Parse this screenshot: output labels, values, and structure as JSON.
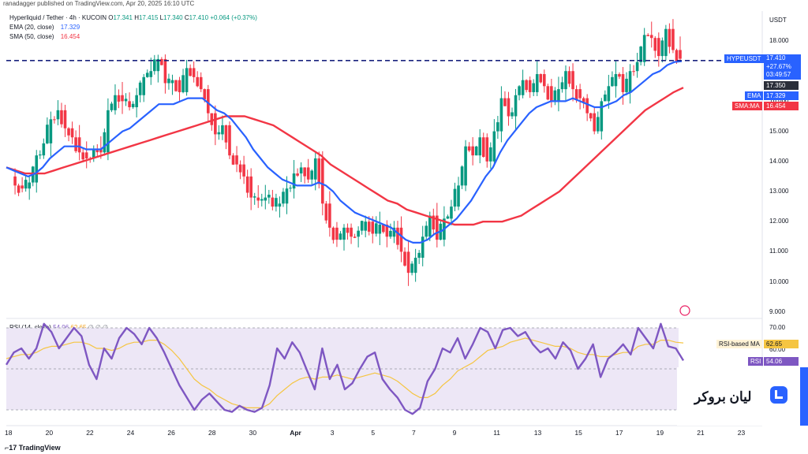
{
  "header": {
    "publish_line": "ranadagger published on TradingView.com, Apr 20, 2025 16:10 UTC"
  },
  "legend": {
    "symbol_line": "Hyperliquid / Tether · 4h · KUCOIN",
    "o_label": "O",
    "o_value": "17.341",
    "h_label": "H",
    "h_value": "17.415",
    "l_label": "L",
    "l_value": "17.340",
    "c_label": "C",
    "c_value": "17.410",
    "change": "+0.064 (+0.37%)",
    "ema_label": "EMA (20, close)",
    "ema_value": "17.329",
    "sma_label": "SMA (50, close)",
    "sma_value": "16.454"
  },
  "rsi_legend": {
    "label": "RSI (14, close)",
    "rsi_value": "54.06",
    "ma_value": "62.65",
    "extra": "∅ ∅ ∅"
  },
  "price_axis": {
    "currency": "USDT",
    "ticks": [
      "18.000",
      "17.000",
      "16.000",
      "15.000",
      "14.000",
      "13.000",
      "12.000",
      "11.000",
      "10.000",
      "9.000"
    ],
    "price_tag": {
      "symbol": "HYPEUSDT",
      "price": "17.410",
      "change": "+27.67%",
      "countdown": "03:49:57"
    },
    "line_tag": "17.350",
    "ema_tag": {
      "label": "EMA",
      "value": "17.329"
    },
    "sma_tag": {
      "label": "SMA:MA",
      "value": "16.454"
    }
  },
  "rsi_axis": {
    "ticks": [
      "70.00",
      "60.00"
    ],
    "rsi_ma_tag": {
      "label": "RSI-based MA",
      "value": "62.65"
    },
    "rsi_tag": {
      "label": "RSI",
      "value": "54.06"
    }
  },
  "time_axis": {
    "ticks": [
      "18",
      "20",
      "22",
      "24",
      "26",
      "28",
      "30",
      "Apr",
      "3",
      "5",
      "7",
      "9",
      "11",
      "13",
      "15",
      "17",
      "19",
      "21",
      "23"
    ]
  },
  "watermark": {
    "text": "لیان بروکر"
  },
  "footer": {
    "brand": "TradingView"
  },
  "colors": {
    "up": "#089981",
    "down": "#f23645",
    "ema": "#2962ff",
    "sma": "#f23645",
    "rsi": "#7e57c2",
    "rsi_ma": "#f5c542",
    "rsi_band": "#ede7f6"
  },
  "chart_data": [
    {
      "type": "candlestick",
      "title": "Hyperliquid / Tether · 4h · KUCOIN",
      "x_ticks": [
        "18",
        "20",
        "22",
        "24",
        "26",
        "28",
        "30",
        "Apr",
        "3",
        "5",
        "7",
        "9",
        "11",
        "13",
        "15",
        "17",
        "19",
        "21",
        "23"
      ],
      "ylim": [
        9.0,
        18.5
      ],
      "current_price": 17.41,
      "horizontal_line": 17.35,
      "close_path": [
        13.5,
        13.2,
        13.1,
        13.3,
        14.2,
        14.6,
        15.4,
        15.7,
        15.1,
        14.8,
        14.3,
        14.1,
        14.4,
        14.3,
        15.7,
        16.2,
        16.0,
        15.8,
        16.2,
        16.8,
        17.0,
        17.4,
        16.6,
        16.7,
        16.3,
        17.1,
        16.8,
        16.4,
        15.6,
        14.9,
        15.2,
        14.2,
        13.9,
        13.5,
        12.8,
        12.7,
        12.8,
        12.5,
        12.6,
        13.1,
        13.6,
        13.8,
        13.4,
        14.1,
        12.6,
        11.8,
        11.4,
        11.8,
        11.5,
        11.7,
        12.0,
        11.6,
        11.9,
        11.5,
        11.8,
        11.0,
        10.3,
        10.8,
        11.5,
        12.2,
        11.4,
        12.1,
        12.5,
        13.2,
        14.5,
        14.2,
        14.8,
        14.0,
        15.0,
        16.1,
        15.5,
        16.2,
        16.7,
        16.3,
        16.9,
        16.5,
        16.0,
        16.4,
        17.0,
        16.4,
        16.1,
        15.6,
        15.0,
        16.0,
        16.5,
        16.9,
        16.3,
        17.0,
        17.3,
        18.2,
        18.1,
        17.5,
        18.4,
        17.7,
        17.41
      ],
      "ema_20": [
        13.8,
        13.7,
        13.6,
        13.5,
        13.6,
        13.8,
        14.1,
        14.3,
        14.5,
        14.5,
        14.5,
        14.4,
        14.4,
        14.4,
        14.6,
        14.8,
        15.0,
        15.1,
        15.3,
        15.5,
        15.7,
        15.9,
        15.9,
        15.9,
        16.0,
        16.1,
        16.1,
        16.1,
        15.9,
        15.7,
        15.6,
        15.4,
        15.1,
        14.8,
        14.4,
        14.1,
        13.8,
        13.6,
        13.4,
        13.3,
        13.2,
        13.2,
        13.2,
        13.3,
        13.2,
        13.0,
        12.7,
        12.5,
        12.3,
        12.2,
        12.1,
        12.0,
        11.9,
        11.8,
        11.6,
        11.4,
        11.3,
        11.3,
        11.4,
        11.6,
        11.7,
        11.9,
        12.1,
        12.4,
        12.7,
        13.1,
        13.5,
        13.8,
        14.3,
        14.7,
        15.0,
        15.3,
        15.6,
        15.8,
        15.9,
        16.0,
        16.0,
        16.0,
        16.1,
        16.0,
        15.9,
        15.8,
        15.8,
        15.9,
        16.0,
        16.2,
        16.3,
        16.5,
        16.7,
        16.9,
        17.0,
        17.2,
        17.3,
        17.33
      ],
      "sma_50": [
        13.8,
        13.7,
        13.6,
        13.6,
        13.6,
        13.7,
        13.8,
        13.9,
        14.0,
        14.1,
        14.2,
        14.3,
        14.4,
        14.5,
        14.6,
        14.7,
        14.8,
        14.9,
        15.0,
        15.1,
        15.2,
        15.3,
        15.4,
        15.5,
        15.5,
        15.5,
        15.4,
        15.3,
        15.2,
        15.0,
        14.8,
        14.6,
        14.4,
        14.2,
        13.9,
        13.7,
        13.5,
        13.3,
        13.1,
        12.9,
        12.7,
        12.6,
        12.4,
        12.3,
        12.2,
        12.1,
        12.0,
        11.9,
        11.9,
        11.9,
        12.0,
        12.0,
        12.0,
        12.1,
        12.2,
        12.4,
        12.6,
        12.8,
        13.0,
        13.3,
        13.6,
        13.9,
        14.2,
        14.5,
        14.8,
        15.1,
        15.4,
        15.7,
        15.9,
        16.1,
        16.3,
        16.45
      ]
    },
    {
      "type": "line",
      "title": "RSI (14, close)",
      "ylim": [
        30,
        72
      ],
      "levels": [
        70,
        50,
        30
      ],
      "rsi": [
        52,
        58,
        60,
        55,
        60,
        72,
        68,
        60,
        65,
        70,
        66,
        52,
        45,
        60,
        55,
        65,
        70,
        67,
        62,
        70,
        65,
        58,
        50,
        42,
        36,
        30,
        35,
        38,
        34,
        30,
        29,
        32,
        30,
        29,
        31,
        42,
        60,
        55,
        63,
        58,
        49,
        40,
        60,
        45,
        52,
        40,
        43,
        50,
        56,
        58,
        45,
        40,
        36,
        30,
        28,
        31,
        44,
        50,
        60,
        58,
        65,
        55,
        62,
        70,
        68,
        60,
        69,
        70,
        66,
        68,
        62,
        58,
        60,
        55,
        63,
        59,
        50,
        55,
        62,
        46,
        55,
        58,
        62,
        57,
        70,
        65,
        60,
        72,
        61,
        60,
        54.06
      ],
      "rsi_ma": [
        55,
        56,
        57,
        57,
        58,
        60,
        61,
        61,
        62,
        63,
        63,
        62,
        60,
        60,
        59,
        60,
        62,
        63,
        63,
        64,
        64,
        62,
        59,
        55,
        50,
        45,
        42,
        40,
        37,
        35,
        33,
        32,
        31,
        31,
        31,
        33,
        37,
        40,
        43,
        45,
        46,
        45,
        46,
        46,
        47,
        46,
        45,
        46,
        47,
        48,
        47,
        46,
        44,
        41,
        38,
        36,
        36,
        38,
        42,
        45,
        49,
        51,
        53,
        56,
        59,
        60,
        61,
        63,
        64,
        65,
        64,
        63,
        62,
        61,
        61,
        60,
        58,
        57,
        57,
        56,
        56,
        57,
        58,
        58,
        61,
        62,
        62,
        64,
        64,
        63,
        62.65
      ]
    }
  ]
}
